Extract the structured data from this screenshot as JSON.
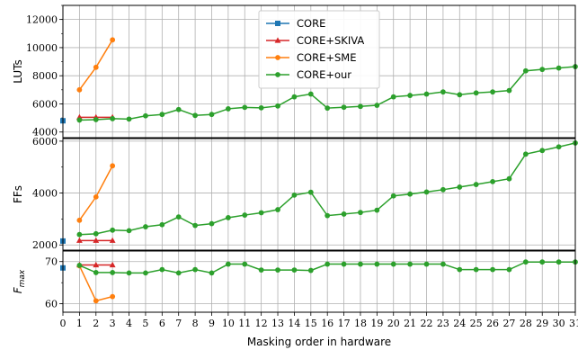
{
  "chart_data": [
    {
      "type": "line",
      "ylabel": "LUTs",
      "ylim": [
        3600,
        13000
      ],
      "yticks": [
        4000,
        6000,
        8000,
        10000,
        12000
      ],
      "series": [
        {
          "name": "CORE",
          "x": [
            0
          ],
          "values": [
            4800
          ]
        },
        {
          "name": "CORE+SKIVA",
          "x": [
            1,
            2,
            3
          ],
          "values": [
            5050,
            5050,
            5050
          ]
        },
        {
          "name": "CORE+SME",
          "x": [
            1,
            2,
            3
          ],
          "values": [
            7000,
            8600,
            10550
          ]
        },
        {
          "name": "CORE+our",
          "x": [
            1,
            2,
            3,
            4,
            5,
            6,
            7,
            8,
            9,
            10,
            11,
            12,
            13,
            14,
            15,
            16,
            17,
            18,
            19,
            20,
            21,
            22,
            23,
            24,
            25,
            26,
            27,
            28,
            29,
            30,
            31
          ],
          "values": [
            4850,
            4880,
            4950,
            4920,
            5150,
            5250,
            5600,
            5180,
            5250,
            5650,
            5750,
            5720,
            5850,
            6500,
            6700,
            5700,
            5760,
            5820,
            5900,
            6500,
            6600,
            6700,
            6850,
            6650,
            6780,
            6850,
            6950,
            8350,
            8450,
            8550,
            8650
          ]
        }
      ]
    },
    {
      "type": "line",
      "ylabel": "FFs",
      "ylim": [
        1800,
        6100
      ],
      "yticks": [
        2000,
        4000,
        6000
      ],
      "series": [
        {
          "name": "CORE",
          "x": [
            0
          ],
          "values": [
            2150
          ]
        },
        {
          "name": "CORE+SKIVA",
          "x": [
            1,
            2,
            3
          ],
          "values": [
            2170,
            2170,
            2170
          ]
        },
        {
          "name": "CORE+SME",
          "x": [
            1,
            2,
            3
          ],
          "values": [
            2950,
            3850,
            5050
          ]
        },
        {
          "name": "CORE+our",
          "x": [
            1,
            2,
            3,
            4,
            5,
            6,
            7,
            8,
            9,
            10,
            11,
            12,
            13,
            14,
            15,
            16,
            17,
            18,
            19,
            20,
            21,
            22,
            23,
            24,
            25,
            26,
            27,
            28,
            29,
            30,
            31
          ],
          "values": [
            2400,
            2430,
            2570,
            2550,
            2700,
            2780,
            3080,
            2750,
            2820,
            3050,
            3150,
            3240,
            3360,
            3920,
            4030,
            3130,
            3190,
            3250,
            3340,
            3890,
            3960,
            4040,
            4130,
            4230,
            4330,
            4440,
            4550,
            5500,
            5640,
            5780,
            5930
          ]
        }
      ]
    },
    {
      "type": "line",
      "ylabel": "F_max",
      "ylim": [
        58,
        72.5
      ],
      "yticks": [
        60,
        70
      ],
      "series": [
        {
          "name": "CORE",
          "x": [
            0
          ],
          "values": [
            68.5
          ]
        },
        {
          "name": "CORE+SKIVA",
          "x": [
            1,
            2,
            3
          ],
          "values": [
            69.2,
            69.2,
            69.2
          ]
        },
        {
          "name": "CORE+SME",
          "x": [
            1,
            2,
            3
          ],
          "values": [
            69.0,
            60.7,
            61.7
          ]
        },
        {
          "name": "CORE+our",
          "x": [
            1,
            2,
            3,
            4,
            5,
            6,
            7,
            8,
            9,
            10,
            11,
            12,
            13,
            14,
            15,
            16,
            17,
            18,
            19,
            20,
            21,
            22,
            23,
            24,
            25,
            26,
            27,
            28,
            29,
            30,
            31
          ],
          "values": [
            69.1,
            67.4,
            67.4,
            67.3,
            67.3,
            68.1,
            67.3,
            68.1,
            67.3,
            69.4,
            69.4,
            68.0,
            68.0,
            68.0,
            67.9,
            69.4,
            69.4,
            69.4,
            69.4,
            69.4,
            69.4,
            69.4,
            69.4,
            68.1,
            68.1,
            68.1,
            68.1,
            69.9,
            69.9,
            69.9,
            69.9
          ]
        }
      ]
    }
  ],
  "xaxis": {
    "label": "Masking order in hardware",
    "min": 0,
    "max": 31,
    "ticks": [
      0,
      1,
      2,
      3,
      4,
      5,
      6,
      7,
      8,
      9,
      10,
      11,
      12,
      13,
      14,
      15,
      16,
      17,
      18,
      19,
      20,
      21,
      22,
      23,
      24,
      25,
      26,
      27,
      28,
      29,
      30,
      31
    ]
  },
  "legend": {
    "placement": "top-center",
    "entries": [
      {
        "name": "CORE",
        "color": "#1f77b4",
        "marker": "square"
      },
      {
        "name": "CORE+SKIVA",
        "color": "#d62728",
        "marker": "triangle"
      },
      {
        "name": "CORE+SME",
        "color": "#ff7f0e",
        "marker": "circle"
      },
      {
        "name": "CORE+our",
        "color": "#2ca02c",
        "marker": "circle"
      }
    ]
  },
  "colors": {
    "CORE": "#1f77b4",
    "CORE+SKIVA": "#d62728",
    "CORE+SME": "#ff7f0e",
    "CORE+our": "#2ca02c",
    "grid": "#b0b0b0"
  }
}
